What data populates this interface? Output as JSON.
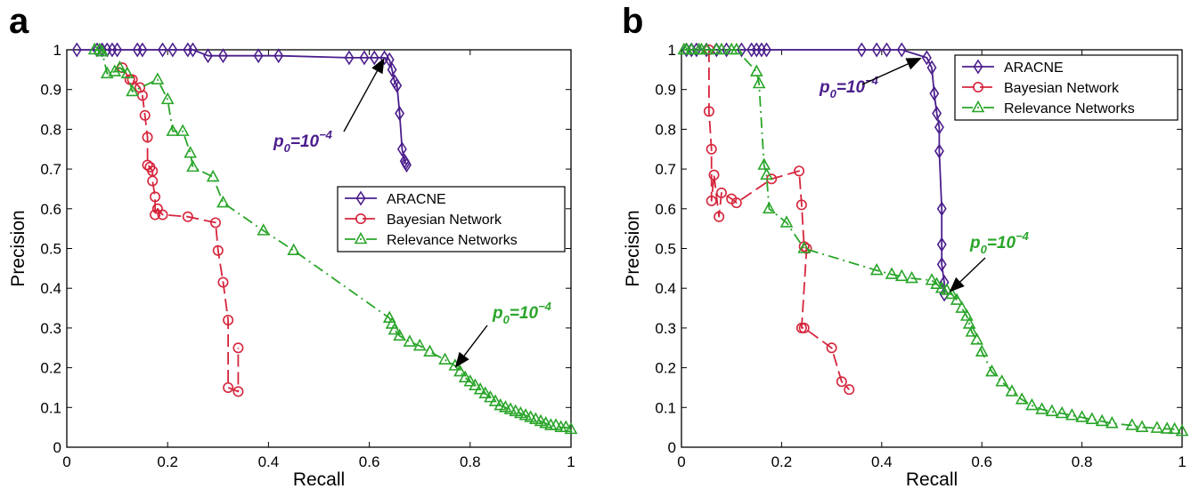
{
  "colors": {
    "aracne": "#4b1e8c",
    "bayesian": "#d6253c",
    "relevance": "#2aa52a",
    "axis": "#000000"
  },
  "chart_data": [
    {
      "panel_label": "a",
      "type": "line",
      "xlabel": "Recall",
      "ylabel": "Precision",
      "xlim": [
        0,
        1
      ],
      "ylim": [
        0,
        1
      ],
      "xticks": [
        "0",
        "0.2",
        "0.4",
        "0.6",
        "0.8",
        "1"
      ],
      "yticks": [
        "0",
        "0.1",
        "0.2",
        "0.3",
        "0.4",
        "0.5",
        "0.6",
        "0.7",
        "0.8",
        "0.9",
        "1"
      ],
      "grid": false,
      "legend_placement": "center-right",
      "annotations": [
        {
          "label_prefix": "p",
          "label_subscript": "0",
          "label_suffix": "=10",
          "label_superscript": "−4",
          "series": "ARACNE",
          "x": 0.63,
          "y": 0.98
        },
        {
          "label_prefix": "p",
          "label_subscript": "0",
          "label_suffix": "=10",
          "label_superscript": "−4",
          "series": "Relevance Networks",
          "x": 0.77,
          "y": 0.2
        }
      ],
      "series": [
        {
          "name": "ARACNE",
          "marker": "diamond",
          "line": "solid",
          "x": [
            0.02,
            0.06,
            0.07,
            0.08,
            0.09,
            0.1,
            0.14,
            0.15,
            0.19,
            0.21,
            0.24,
            0.25,
            0.28,
            0.31,
            0.38,
            0.42,
            0.56,
            0.59,
            0.61,
            0.63,
            0.64,
            0.645,
            0.65,
            0.655,
            0.66,
            0.665,
            0.67,
            0.672,
            0.674
          ],
          "y": [
            1.0,
            1.0,
            1.0,
            1.0,
            1.0,
            1.0,
            1.0,
            1.0,
            1.0,
            1.0,
            1.0,
            1.0,
            0.985,
            0.985,
            0.985,
            0.985,
            0.98,
            0.98,
            0.98,
            0.98,
            0.975,
            0.95,
            0.92,
            0.91,
            0.84,
            0.75,
            0.72,
            0.715,
            0.71
          ]
        },
        {
          "name": "Bayesian Network",
          "marker": "circle",
          "line": "dashed",
          "x": [
            0.11,
            0.125,
            0.13,
            0.145,
            0.15,
            0.155,
            0.16,
            0.16,
            0.165,
            0.17,
            0.17,
            0.175,
            0.175,
            0.18,
            0.19,
            0.24,
            0.295,
            0.3,
            0.31,
            0.32,
            0.32,
            0.34,
            0.34
          ],
          "y": [
            0.955,
            0.925,
            0.925,
            0.905,
            0.885,
            0.835,
            0.78,
            0.71,
            0.705,
            0.695,
            0.67,
            0.63,
            0.585,
            0.6,
            0.585,
            0.58,
            0.565,
            0.495,
            0.415,
            0.32,
            0.15,
            0.14,
            0.25
          ]
        },
        {
          "name": "Relevance Networks",
          "marker": "triangle",
          "line": "dashdot",
          "x": [
            0.055,
            0.065,
            0.07,
            0.08,
            0.095,
            0.105,
            0.12,
            0.13,
            0.18,
            0.2,
            0.21,
            0.23,
            0.245,
            0.25,
            0.29,
            0.31,
            0.39,
            0.45,
            0.64,
            0.645,
            0.65,
            0.66,
            0.68,
            0.7,
            0.72,
            0.75,
            0.77,
            0.78,
            0.79,
            0.8,
            0.81,
            0.82,
            0.83,
            0.84,
            0.85,
            0.86,
            0.87,
            0.88,
            0.89,
            0.9,
            0.91,
            0.92,
            0.93,
            0.94,
            0.95,
            0.96,
            0.97,
            0.98,
            0.99,
            1.0
          ],
          "y": [
            1.0,
            1.0,
            0.995,
            0.94,
            0.945,
            0.955,
            0.94,
            0.895,
            0.925,
            0.875,
            0.795,
            0.795,
            0.74,
            0.705,
            0.68,
            0.615,
            0.545,
            0.495,
            0.325,
            0.31,
            0.295,
            0.28,
            0.265,
            0.255,
            0.24,
            0.22,
            0.205,
            0.19,
            0.175,
            0.165,
            0.155,
            0.145,
            0.135,
            0.125,
            0.115,
            0.105,
            0.1,
            0.095,
            0.09,
            0.085,
            0.08,
            0.075,
            0.07,
            0.065,
            0.06,
            0.055,
            0.055,
            0.05,
            0.05,
            0.045
          ]
        }
      ]
    },
    {
      "panel_label": "b",
      "type": "line",
      "xlabel": "Recall",
      "ylabel": "Precision",
      "xlim": [
        0,
        1
      ],
      "ylim": [
        0,
        1
      ],
      "xticks": [
        "0",
        "0.2",
        "0.4",
        "0.6",
        "0.8",
        "1"
      ],
      "yticks": [
        "0",
        "0.1",
        "0.2",
        "0.3",
        "0.4",
        "0.5",
        "0.6",
        "0.7",
        "0.8",
        "0.9",
        "1"
      ],
      "grid": false,
      "legend_placement": "top-right",
      "annotations": [
        {
          "label_prefix": "p",
          "label_subscript": "0",
          "label_suffix": "=10",
          "label_superscript": "−4",
          "series": "ARACNE",
          "x": 0.48,
          "y": 0.98
        },
        {
          "label_prefix": "p",
          "label_subscript": "0",
          "label_suffix": "=10",
          "label_superscript": "−4",
          "series": "Relevance Networks",
          "x": 0.535,
          "y": 0.39
        }
      ],
      "series": [
        {
          "name": "ARACNE",
          "marker": "diamond",
          "line": "solid",
          "x": [
            0.01,
            0.02,
            0.03,
            0.05,
            0.07,
            0.09,
            0.12,
            0.14,
            0.15,
            0.16,
            0.17,
            0.36,
            0.39,
            0.41,
            0.44,
            0.49,
            0.5,
            0.505,
            0.51,
            0.515,
            0.515,
            0.52,
            0.52,
            0.52,
            0.525,
            0.525
          ],
          "y": [
            1.0,
            1.0,
            1.0,
            1.0,
            1.0,
            1.0,
            1.0,
            1.0,
            1.0,
            1.0,
            1.0,
            1.0,
            1.0,
            1.0,
            1.0,
            0.98,
            0.955,
            0.89,
            0.84,
            0.805,
            0.745,
            0.6,
            0.51,
            0.46,
            0.415,
            0.385
          ]
        },
        {
          "name": "Bayesian Network",
          "marker": "circle",
          "line": "dashed",
          "x": [
            0.055,
            0.055,
            0.06,
            0.06,
            0.065,
            0.075,
            0.08,
            0.1,
            0.11,
            0.18,
            0.235,
            0.24,
            0.245,
            0.25,
            0.24,
            0.245,
            0.3,
            0.32,
            0.335
          ],
          "y": [
            1.0,
            0.845,
            0.75,
            0.62,
            0.685,
            0.58,
            0.64,
            0.625,
            0.615,
            0.675,
            0.695,
            0.61,
            0.505,
            0.5,
            0.3,
            0.3,
            0.25,
            0.165,
            0.145
          ]
        },
        {
          "name": "Relevance Networks",
          "marker": "triangle",
          "line": "dashdot",
          "x": [
            0.005,
            0.01,
            0.02,
            0.035,
            0.04,
            0.05,
            0.07,
            0.08,
            0.1,
            0.11,
            0.15,
            0.155,
            0.165,
            0.17,
            0.175,
            0.21,
            0.245,
            0.39,
            0.42,
            0.44,
            0.46,
            0.5,
            0.51,
            0.52,
            0.53,
            0.54,
            0.55,
            0.56,
            0.57,
            0.575,
            0.58,
            0.59,
            0.6,
            0.62,
            0.64,
            0.66,
            0.68,
            0.7,
            0.72,
            0.74,
            0.76,
            0.78,
            0.8,
            0.82,
            0.84,
            0.86,
            0.9,
            0.92,
            0.95,
            0.97,
            0.985,
            1.0
          ],
          "y": [
            1.0,
            1.0,
            1.0,
            1.0,
            1.0,
            1.0,
            1.0,
            1.0,
            1.0,
            1.0,
            0.945,
            0.915,
            0.71,
            0.685,
            0.6,
            0.565,
            0.5,
            0.445,
            0.435,
            0.43,
            0.425,
            0.42,
            0.41,
            0.4,
            0.395,
            0.385,
            0.37,
            0.35,
            0.33,
            0.31,
            0.29,
            0.27,
            0.24,
            0.19,
            0.165,
            0.14,
            0.12,
            0.105,
            0.095,
            0.09,
            0.085,
            0.08,
            0.075,
            0.07,
            0.065,
            0.06,
            0.055,
            0.05,
            0.048,
            0.046,
            0.045,
            0.04
          ]
        }
      ]
    }
  ]
}
